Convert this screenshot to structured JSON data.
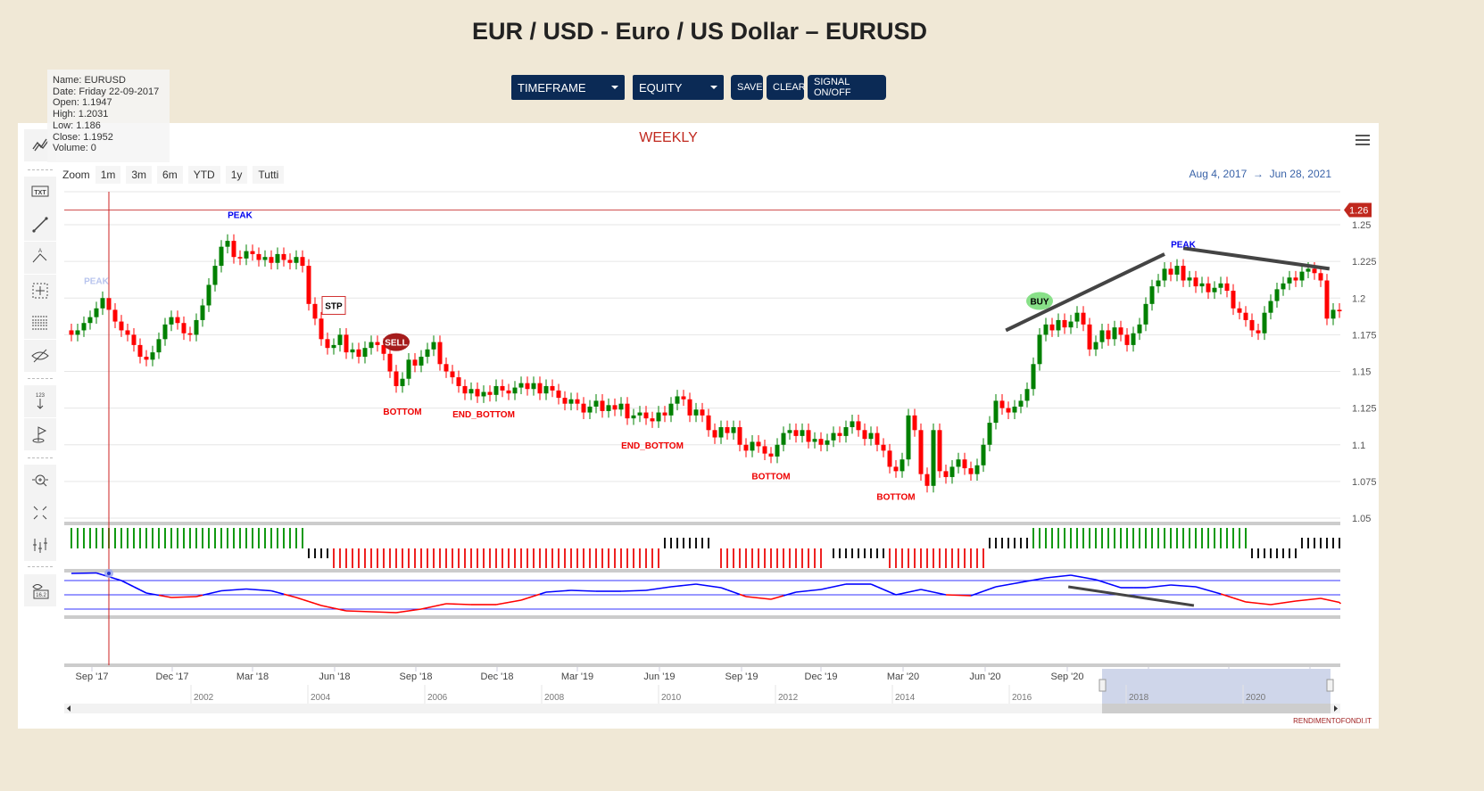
{
  "page": {
    "title": "EUR / USD - Euro / US Dollar – EURUSD",
    "credit": "RENDIMENTOFONDI.IT"
  },
  "toolbar": {
    "timeframe": "TIMEFRAME",
    "equity": "EQUITY",
    "save": "SAVE",
    "clear": "CLEAR",
    "signal": "SIGNAL ON/OFF"
  },
  "colors": {
    "background": "#f0e8d6",
    "button": "#0b2a55",
    "up": "#008000",
    "down": "#ff0000",
    "oscillator_high": "#0000ff",
    "oscillator_low": "#ff0000",
    "current_price": "#c0281e"
  },
  "left_tools": [
    "trend-lines-icon",
    "text-annotation-icon",
    "line-icon",
    "elliott-wave-icon",
    "crosshair-measure-icon",
    "fibonacci-icon",
    "hide-icon",
    "vertical-counter-icon",
    "flag-icon",
    "zoom-pan-icon",
    "fullscreen-icon",
    "indicators-icon",
    "visibility-count-icon"
  ],
  "left_tool_badge": "16.2",
  "zoom": {
    "label": "Zoom",
    "buttons": [
      "1m",
      "3m",
      "6m",
      "YTD",
      "1y",
      "Tutti"
    ]
  },
  "range": {
    "from": "Aug 4, 2017",
    "arrow": "→",
    "to": "Jun 28, 2021"
  },
  "tooltip": {
    "name": "Name: EURUSD",
    "date": "Date: Friday 22-09-2017",
    "open": "Open: 1.1947",
    "high": "High: 1.2031",
    "low": "Low: 1.186",
    "close": "Close: 1.1952",
    "volume": "Volume: 0"
  },
  "chart_data": {
    "type": "candlestick",
    "title": "WEEKLY",
    "timeframe": "weekly",
    "start": "Aug 4, 2017",
    "end": "Jun 28, 2021",
    "ylim": [
      1.04,
      1.27
    ],
    "yticks": [
      "1.25",
      "1.225",
      "1.2",
      "1.175",
      "1.15",
      "1.125",
      "1.1",
      "1.075",
      "1.05"
    ],
    "current_price": "1.26",
    "xticks": [
      "Sep '17",
      "Dec '17",
      "Mar '18",
      "Jun '18",
      "Sep '18",
      "Dec '18",
      "Mar '19",
      "Jun '19",
      "Sep '19",
      "Dec '19",
      "Mar '20",
      "Jun '20",
      "Sep '20",
      "Dec '20",
      "Mar '21",
      "Jun '21"
    ],
    "navigator_ticks": [
      "2002",
      "2004",
      "2006",
      "2008",
      "2010",
      "2012",
      "2014",
      "2016",
      "2018",
      "2020"
    ],
    "grid": true,
    "close": [
      1.175,
      1.178,
      1.183,
      1.187,
      1.193,
      1.2,
      1.192,
      1.184,
      1.178,
      1.175,
      1.168,
      1.16,
      1.158,
      1.163,
      1.172,
      1.182,
      1.187,
      1.183,
      1.176,
      1.175,
      1.185,
      1.195,
      1.209,
      1.222,
      1.235,
      1.239,
      1.228,
      1.227,
      1.232,
      1.23,
      1.226,
      1.228,
      1.224,
      1.23,
      1.226,
      1.224,
      1.228,
      1.222,
      1.196,
      1.186,
      1.172,
      1.166,
      1.168,
      1.175,
      1.163,
      1.165,
      1.16,
      1.166,
      1.17,
      1.168,
      1.162,
      1.15,
      1.14,
      1.145,
      1.158,
      1.154,
      1.16,
      1.165,
      1.17,
      1.155,
      1.15,
      1.146,
      1.14,
      1.135,
      1.138,
      1.133,
      1.136,
      1.134,
      1.14,
      1.137,
      1.135,
      1.139,
      1.142,
      1.138,
      1.142,
      1.135,
      1.14,
      1.137,
      1.132,
      1.128,
      1.131,
      1.128,
      1.122,
      1.126,
      1.13,
      1.123,
      1.127,
      1.124,
      1.128,
      1.118,
      1.12,
      1.122,
      1.118,
      1.116,
      1.122,
      1.12,
      1.128,
      1.133,
      1.131,
      1.12,
      1.124,
      1.12,
      1.11,
      1.105,
      1.112,
      1.108,
      1.112,
      1.1,
      1.096,
      1.102,
      1.099,
      1.094,
      1.092,
      1.1,
      1.108,
      1.11,
      1.106,
      1.11,
      1.102,
      1.104,
      1.1,
      1.103,
      1.108,
      1.106,
      1.112,
      1.116,
      1.11,
      1.104,
      1.108,
      1.1,
      1.096,
      1.085,
      1.082,
      1.09,
      1.12,
      1.11,
      1.08,
      1.072,
      1.11,
      1.082,
      1.078,
      1.085,
      1.09,
      1.084,
      1.08,
      1.086,
      1.1,
      1.115,
      1.13,
      1.125,
      1.122,
      1.126,
      1.13,
      1.138,
      1.155,
      1.175,
      1.182,
      1.178,
      1.185,
      1.18,
      1.184,
      1.19,
      1.182,
      1.165,
      1.17,
      1.178,
      1.172,
      1.18,
      1.175,
      1.168,
      1.176,
      1.182,
      1.196,
      1.208,
      1.212,
      1.22,
      1.216,
      1.222,
      1.212,
      1.214,
      1.208,
      1.21,
      1.204,
      1.207,
      1.21,
      1.205,
      1.193,
      1.19,
      1.185,
      1.178,
      1.176,
      1.19,
      1.198,
      1.206,
      1.21,
      1.214,
      1.212,
      1.218,
      1.22,
      1.217,
      1.212,
      1.186,
      1.192,
      1.191
    ],
    "annotations": [
      {
        "text": "PEAK",
        "week": 27,
        "price": 1.257,
        "style": "blue"
      },
      {
        "text": "PEAK",
        "week": 4,
        "price": 1.212,
        "style": "faded"
      },
      {
        "text": "STP",
        "week": 42,
        "price": 1.195,
        "style": "box"
      },
      {
        "text": "SELL",
        "week": 52,
        "price": 1.17,
        "style": "sell"
      },
      {
        "text": "BOTTOM",
        "week": 53,
        "price": 1.123,
        "style": "red"
      },
      {
        "text": "END_BOTTOM",
        "week": 66,
        "price": 1.121,
        "style": "red"
      },
      {
        "text": "END_BOTTOM",
        "week": 93,
        "price": 1.1,
        "style": "red"
      },
      {
        "text": "BOTTOM",
        "week": 112,
        "price": 1.079,
        "style": "red"
      },
      {
        "text": "BOTTOM",
        "week": 132,
        "price": 1.065,
        "style": "red"
      },
      {
        "text": "BUY",
        "week": 155,
        "price": 1.198,
        "style": "buy"
      },
      {
        "text": "PEAK",
        "week": 178,
        "price": 1.237,
        "style": "blue"
      }
    ],
    "trendlines": [
      {
        "from": [
          149.6,
          1.178
        ],
        "to": [
          175,
          1.23
        ]
      },
      {
        "from": [
          178,
          1.234
        ],
        "to": [
          201.4,
          1.22
        ]
      }
    ],
    "horizontal_line": 1.26,
    "crosshair_week": 6,
    "signals": [
      {
        "from": 0,
        "to": 37,
        "type": "green"
      },
      {
        "from": 38,
        "to": 41,
        "type": "black-low"
      },
      {
        "from": 42,
        "to": 94,
        "type": "red"
      },
      {
        "from": 95,
        "to": 102,
        "type": "black-high"
      },
      {
        "from": 104,
        "to": 120,
        "type": "red"
      },
      {
        "from": 122,
        "to": 130,
        "type": "black-low"
      },
      {
        "from": 131,
        "to": 146,
        "type": "red"
      },
      {
        "from": 147,
        "to": 153,
        "type": "black-high"
      },
      {
        "from": 154,
        "to": 188,
        "type": "green"
      },
      {
        "from": 189,
        "to": 196,
        "type": "black-low"
      },
      {
        "from": 197,
        "to": 203,
        "type": "black-high"
      }
    ],
    "oscillator": {
      "step_weeks": 4,
      "levels": [
        78,
        46,
        14
      ],
      "values": [
        94,
        95,
        78,
        50,
        40,
        42,
        55,
        59,
        55,
        40,
        22,
        10,
        8,
        6,
        14,
        26,
        24,
        24,
        34,
        52,
        56,
        54,
        54,
        56,
        64,
        70,
        62,
        42,
        36,
        52,
        58,
        70,
        70,
        46,
        58,
        46,
        44,
        64,
        74,
        84,
        90,
        80,
        62,
        62,
        68,
        64,
        48,
        30,
        24,
        32,
        38,
        26
      ],
      "trendline": {
        "from": [
          159.6,
          64
        ],
        "to": [
          179.7,
          22
        ]
      }
    }
  }
}
